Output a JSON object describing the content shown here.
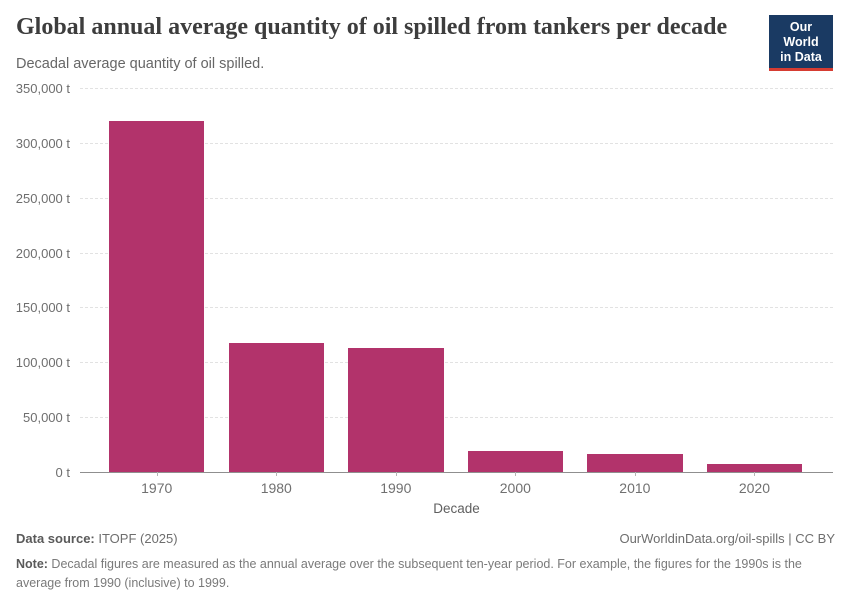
{
  "header": {
    "title": "Global annual average quantity of oil spilled from tankers per decade",
    "subtitle": "Decadal average quantity of oil spilled.",
    "logo": {
      "line1": "Our World",
      "line2": "in Data"
    }
  },
  "chart_data": {
    "type": "bar",
    "title": "Global annual average quantity of oil spilled from tankers per decade",
    "subtitle": "Decadal average quantity of oil spilled.",
    "categories": [
      "1970",
      "1980",
      "1990",
      "2000",
      "2010",
      "2020"
    ],
    "values": [
      320000,
      118000,
      113000,
      19000,
      16000,
      7000
    ],
    "xlabel": "Decade",
    "ylabel": "",
    "ylim": [
      0,
      350000
    ],
    "ytick_step": 50000,
    "ytick_suffix": " t",
    "grid": true,
    "legend": false,
    "colors": {
      "bar": "#b2336b",
      "gridline": "#e2e2e2",
      "zero_line": "#8f8f8f",
      "logo_bg": "#1a3a63",
      "logo_stripe": "#d63c32"
    }
  },
  "footer": {
    "source_label": "Data source:",
    "source_value": " ITOPF (2025)",
    "credit": "OurWorldinData.org/oil-spills | CC BY",
    "note_label": "Note:",
    "note_value": " Decadal figures are measured as the annual average over the subsequent ten-year period. For example, the figures for the 1990s is the average from 1990 (inclusive) to 1999."
  }
}
